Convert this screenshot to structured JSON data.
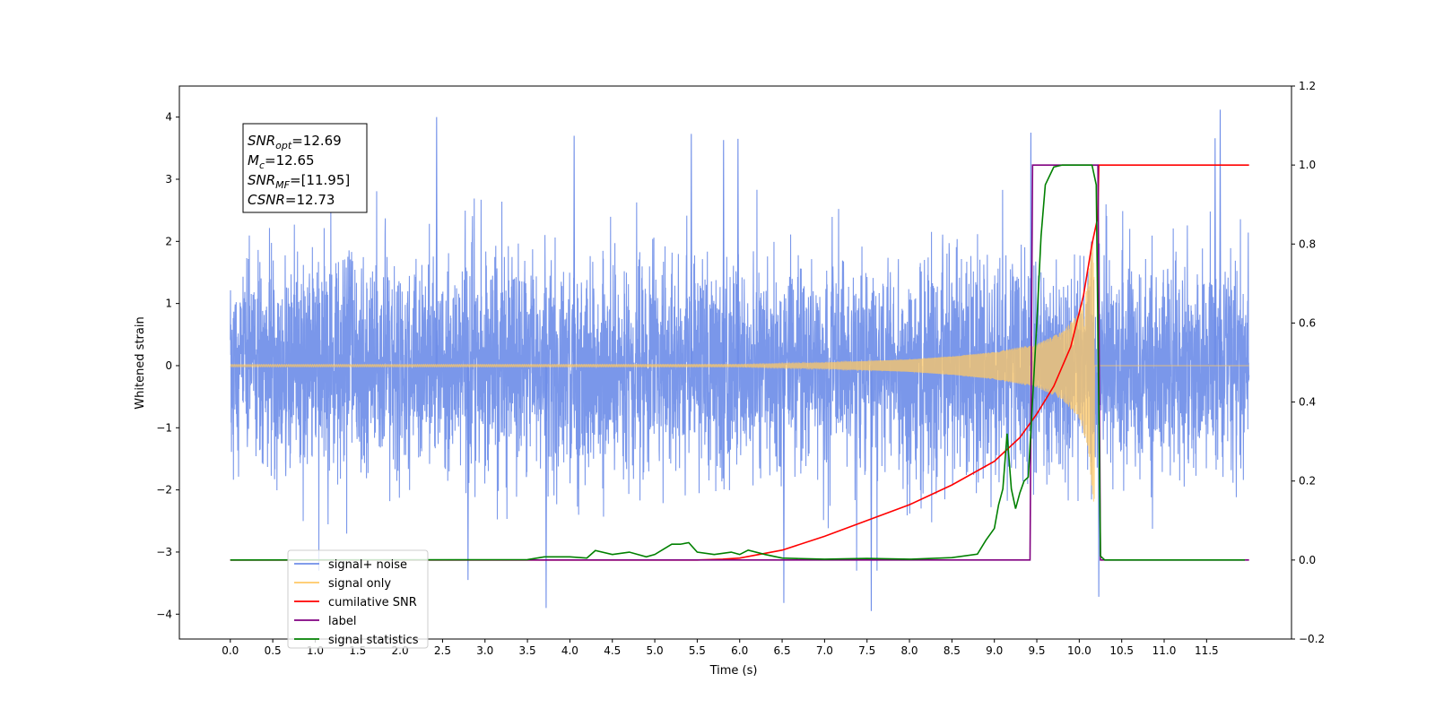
{
  "chart_data": {
    "type": "line",
    "xlabel": "Time (s)",
    "ylabel": "Whitened strain",
    "xlim": [
      -0.6,
      12.5
    ],
    "ylim_left": [
      -4.4,
      4.5
    ],
    "ylim_right": [
      -0.2,
      1.2
    ],
    "x_ticks": [
      0.0,
      0.5,
      1.0,
      1.5,
      2.0,
      2.5,
      3.0,
      3.5,
      4.0,
      4.5,
      5.0,
      5.5,
      6.0,
      6.5,
      7.0,
      7.5,
      8.0,
      8.5,
      9.0,
      9.5,
      10.0,
      10.5,
      11.0,
      11.5
    ],
    "x_tick_labels": [
      "0.0",
      "0.5",
      "1.0",
      "1.5",
      "2.0",
      "2.5",
      "3.0",
      "3.5",
      "4.0",
      "4.5",
      "5.0",
      "5.5",
      "6.0",
      "6.5",
      "7.0",
      "7.5",
      "8.0",
      "8.5",
      "9.0",
      "9.5",
      "10.0",
      "10.5",
      "11.0",
      "11.5"
    ],
    "y_left_ticks": [
      -4,
      -3,
      -2,
      -1,
      0,
      1,
      2,
      3,
      4
    ],
    "y_left_tick_labels": [
      "−4",
      "−3",
      "−2",
      "−1",
      "0",
      "1",
      "2",
      "3",
      "4"
    ],
    "y_right_ticks": [
      -0.2,
      0.0,
      0.2,
      0.4,
      0.6,
      0.8,
      1.0,
      1.2
    ],
    "y_right_tick_labels": [
      "−0.2",
      "0.0",
      "0.2",
      "0.4",
      "0.6",
      "0.8",
      "1.0",
      "1.2"
    ],
    "annotation": [
      {
        "main": "SNR",
        "sub": "opt",
        "value": "=12.69"
      },
      {
        "main": "M",
        "sub": "c",
        "value": "=12.65"
      },
      {
        "main": "SNR",
        "sub": "MF",
        "value": "=[11.95]"
      },
      {
        "main": "CSNR",
        "sub": "",
        "value": "=12.73"
      }
    ],
    "legend": {
      "placement": "lower-left",
      "entries": [
        {
          "label": "signal+ noise",
          "color": "#6f8ee8"
        },
        {
          "label": "signal only",
          "color": "#ffc864"
        },
        {
          "label": "cumilative SNR",
          "color": "#ff0000"
        },
        {
          "label": "label",
          "color": "#800080"
        },
        {
          "label": "signal statistics",
          "color": "#008000"
        }
      ]
    },
    "series": [
      {
        "name": "signal+ noise",
        "axis": "left",
        "color": "#6f8ee8",
        "x_range": [
          0.0,
          12.0
        ],
        "noise_std": 0.85,
        "peaks": [
          [
            2.43,
            4.0
          ],
          [
            11.66,
            4.12
          ],
          [
            9.43,
            3.75
          ],
          [
            4.05,
            3.7
          ],
          [
            5.43,
            3.73
          ],
          [
            5.98,
            3.65
          ],
          [
            5.81,
            3.63
          ],
          [
            11.6,
            3.66
          ],
          [
            3.72,
            -3.9
          ],
          [
            7.55,
            -3.95
          ],
          [
            6.52,
            -3.82
          ],
          [
            10.23,
            -3.72
          ],
          [
            2.8,
            -3.45
          ]
        ]
      },
      {
        "name": "signal only",
        "axis": "left",
        "color": "#ffc864",
        "x_range": [
          0.0,
          12.0
        ],
        "merger_time": 10.18,
        "amplitude_envelope": [
          [
            6.0,
            0.02
          ],
          [
            7.0,
            0.05
          ],
          [
            8.0,
            0.1
          ],
          [
            8.5,
            0.15
          ],
          [
            9.0,
            0.22
          ],
          [
            9.5,
            0.35
          ],
          [
            9.8,
            0.55
          ],
          [
            10.0,
            0.85
          ],
          [
            10.1,
            1.3
          ],
          [
            10.18,
            2.4
          ],
          [
            10.22,
            0.05
          ],
          [
            10.3,
            0.0
          ]
        ]
      },
      {
        "name": "cumilative SNR",
        "axis": "right",
        "x": [
          0.0,
          5.5,
          5.8,
          6.0,
          6.5,
          7.0,
          7.5,
          8.0,
          8.5,
          9.0,
          9.3,
          9.5,
          9.7,
          9.9,
          10.05,
          10.15,
          10.22,
          10.23,
          12.0
        ],
        "y": [
          0.0,
          0.0,
          0.002,
          0.005,
          0.025,
          0.06,
          0.1,
          0.14,
          0.19,
          0.25,
          0.31,
          0.37,
          0.44,
          0.54,
          0.67,
          0.8,
          0.87,
          1.0,
          1.0
        ]
      },
      {
        "name": "label",
        "axis": "right",
        "x": [
          0.0,
          9.42,
          9.45,
          10.22,
          10.25,
          12.0
        ],
        "y": [
          0.0,
          0.0,
          1.0,
          1.0,
          0.0,
          0.0
        ]
      },
      {
        "name": "signal statistics",
        "axis": "right",
        "x": [
          0.0,
          3.5,
          3.7,
          4.0,
          4.2,
          4.3,
          4.5,
          4.7,
          4.9,
          5.0,
          5.2,
          5.3,
          5.4,
          5.5,
          5.7,
          5.9,
          6.0,
          6.1,
          6.3,
          6.5,
          7.0,
          7.5,
          8.0,
          8.5,
          8.8,
          8.9,
          9.0,
          9.05,
          9.1,
          9.15,
          9.2,
          9.25,
          9.3,
          9.35,
          9.4,
          9.5,
          9.55,
          9.6,
          9.7,
          9.8,
          10.0,
          10.15,
          10.2,
          10.25,
          10.3,
          12.0
        ],
        "y": [
          0.0,
          0.001,
          0.008,
          0.008,
          0.005,
          0.024,
          0.014,
          0.02,
          0.008,
          0.014,
          0.04,
          0.04,
          0.044,
          0.02,
          0.014,
          0.02,
          0.014,
          0.025,
          0.014,
          0.005,
          0.002,
          0.004,
          0.002,
          0.006,
          0.015,
          0.05,
          0.08,
          0.14,
          0.18,
          0.32,
          0.18,
          0.13,
          0.17,
          0.2,
          0.21,
          0.6,
          0.82,
          0.95,
          0.995,
          1.0,
          1.0,
          1.0,
          0.95,
          0.01,
          0.0,
          0.0
        ]
      }
    ]
  }
}
